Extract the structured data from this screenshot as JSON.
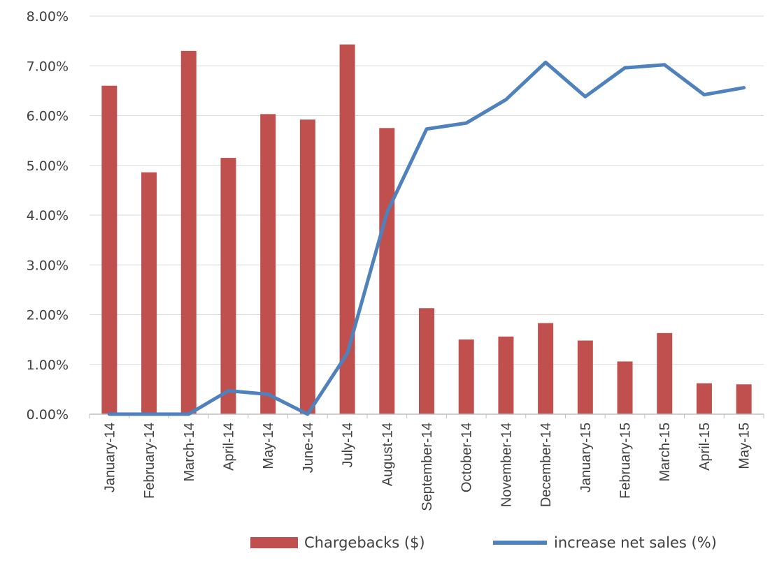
{
  "chart_data": {
    "type": "bar",
    "title": "",
    "xlabel": "",
    "ylabel": "",
    "ylim": [
      0,
      0.08
    ],
    "yticks": [
      "0.00%",
      "1.00%",
      "2.00%",
      "3.00%",
      "4.00%",
      "5.00%",
      "6.00%",
      "7.00%",
      "8.00%"
    ],
    "grid": true,
    "legend_position": "bottom-right",
    "categories": [
      "January-14",
      "February-14",
      "March-14",
      "April-14",
      "May-14",
      "June-14",
      "July-14",
      "August-14",
      "September-14",
      "October-14",
      "November-14",
      "December-14",
      "January-15",
      "February-15",
      "March-15",
      "April-15",
      "May-15"
    ],
    "series": [
      {
        "name": "Chargebacks ($)",
        "type": "bar",
        "color": "#C0504D",
        "values": [
          0.066,
          0.0486,
          0.073,
          0.0515,
          0.0603,
          0.0592,
          0.0743,
          0.0575,
          0.0213,
          0.015,
          0.0156,
          0.0183,
          0.0148,
          0.0106,
          0.0163,
          0.0062,
          0.006
        ]
      },
      {
        "name": "increase net sales (%)",
        "type": "line",
        "color": "#4F81BD",
        "values": [
          0.0,
          0.0,
          0.0,
          0.0047,
          0.004,
          0.0,
          0.0122,
          0.0405,
          0.0573,
          0.0585,
          0.0632,
          0.0707,
          0.0638,
          0.0696,
          0.0702,
          0.0642,
          0.0656
        ]
      }
    ]
  }
}
